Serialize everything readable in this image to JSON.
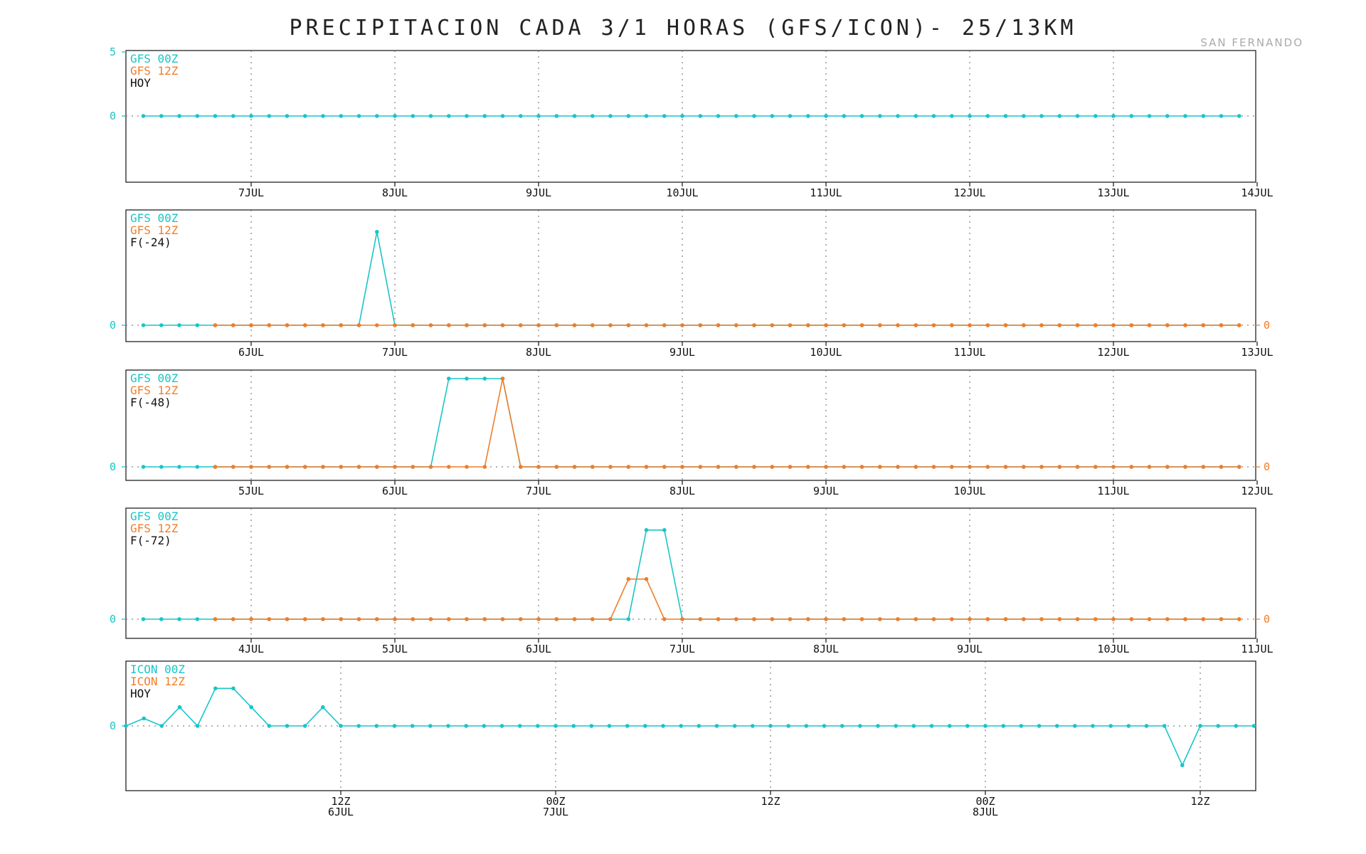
{
  "title": "PRECIPITACION CADA 3/1 HORAS (GFS/ICON)- 25/13KM",
  "station": "SAN FERNANDO",
  "colors": {
    "series_00z": "#19c5c8",
    "series_12z": "#f07d2a",
    "text": "#111111",
    "frame": "#222222",
    "grid": "#666666"
  },
  "chart_data": [
    {
      "type": "line",
      "legend": [
        "GFS 00Z",
        "GFS 12Z",
        "HOY"
      ],
      "x_tick_labels": [
        "7JUL",
        "8JUL",
        "9JUL",
        "10JUL",
        "11JUL",
        "12JUL",
        "13JUL",
        "14JUL"
      ],
      "y_tick_labels": [
        {
          "value": 5,
          "label": "5"
        },
        {
          "value": 0,
          "label": "0"
        }
      ],
      "right_y_tick_labels": [],
      "ylim": [
        -5,
        5
      ],
      "grid": true,
      "series": [
        {
          "name": "GFS 00Z",
          "x_start": -0.75,
          "x_step": 0.125,
          "values": [
            0,
            0,
            0,
            0,
            0,
            0,
            0,
            0,
            0,
            0,
            0,
            0,
            0,
            0,
            0,
            0,
            0,
            0,
            0,
            0,
            0,
            0,
            0,
            0,
            0,
            0,
            0,
            0,
            0,
            0,
            0,
            0,
            0,
            0,
            0,
            0,
            0,
            0,
            0,
            0,
            0,
            0,
            0,
            0,
            0,
            0,
            0,
            0,
            0,
            0,
            0,
            0,
            0,
            0,
            0,
            0,
            0,
            0,
            0,
            0,
            0,
            0,
            0,
            0,
            0
          ]
        }
      ]
    },
    {
      "type": "line",
      "legend": [
        "GFS 00Z",
        "GFS 12Z",
        "F(-24)"
      ],
      "x_tick_labels": [
        "6JUL",
        "7JUL",
        "8JUL",
        "9JUL",
        "10JUL",
        "11JUL",
        "12JUL",
        "13JUL"
      ],
      "y_tick_labels": [
        {
          "value": 0,
          "label": "0"
        }
      ],
      "right_y_tick_labels": [
        {
          "value": 0,
          "label": "0"
        }
      ],
      "ylim": [
        -0.25,
        1.6
      ],
      "grid": true,
      "series": [
        {
          "name": "GFS 00Z",
          "x_start": -0.75,
          "x_step": 0.125,
          "values": [
            0,
            0,
            0,
            0,
            0,
            0,
            0,
            0,
            0,
            0,
            0,
            0,
            0,
            1.4,
            0,
            0,
            0,
            0,
            0,
            0,
            0,
            0,
            0,
            0,
            0,
            0,
            0,
            0,
            0,
            0,
            0,
            0,
            0,
            0,
            0,
            0,
            0,
            0,
            0,
            0,
            0,
            0,
            0,
            0,
            0,
            0,
            0,
            0,
            0,
            0,
            0,
            0,
            0,
            0,
            0,
            0,
            0,
            0,
            0,
            0,
            0,
            0,
            0,
            0,
            0
          ]
        },
        {
          "name": "GFS 12Z",
          "x_start": -0.25,
          "x_step": 0.125,
          "values": [
            0,
            0,
            0,
            0,
            0,
            0,
            0,
            0,
            0,
            0,
            0,
            0,
            0,
            0,
            0,
            0,
            0,
            0,
            0,
            0,
            0,
            0,
            0,
            0,
            0,
            0,
            0,
            0,
            0,
            0,
            0,
            0,
            0,
            0,
            0,
            0,
            0,
            0,
            0,
            0,
            0,
            0,
            0,
            0,
            0,
            0,
            0,
            0,
            0,
            0,
            0,
            0,
            0,
            0,
            0,
            0,
            0,
            0,
            0,
            0,
            0
          ]
        }
      ]
    },
    {
      "type": "line",
      "legend": [
        "GFS 00Z",
        "GFS 12Z",
        "F(-48)"
      ],
      "x_tick_labels": [
        "5JUL",
        "6JUL",
        "7JUL",
        "8JUL",
        "9JUL",
        "10JUL",
        "11JUL",
        "12JUL"
      ],
      "y_tick_labels": [
        {
          "value": 0,
          "label": "0"
        }
      ],
      "right_y_tick_labels": [
        {
          "value": 0,
          "label": "0"
        }
      ],
      "ylim": [
        -0.2,
        1.0
      ],
      "grid": true,
      "series": [
        {
          "name": "GFS 00Z",
          "x_start": -0.75,
          "x_step": 0.125,
          "values": [
            0,
            0,
            0,
            0,
            0,
            0,
            0,
            0,
            0,
            0,
            0,
            0,
            0,
            0,
            0,
            0,
            0,
            1,
            1,
            1,
            1,
            0,
            0,
            0,
            0,
            0,
            0,
            0,
            0,
            0,
            0,
            0,
            0,
            0,
            0,
            0,
            0,
            0,
            0,
            0,
            0,
            0,
            0,
            0,
            0,
            0,
            0,
            0,
            0,
            0,
            0,
            0,
            0,
            0,
            0,
            0,
            0,
            0,
            0,
            0,
            0,
            0,
            0,
            0,
            0
          ]
        },
        {
          "name": "GFS 12Z",
          "x_start": -0.25,
          "x_step": 0.125,
          "values": [
            0,
            0,
            0,
            0,
            0,
            0,
            0,
            0,
            0,
            0,
            0,
            0,
            0,
            0,
            0,
            0,
            1,
            0,
            0,
            0,
            0,
            0,
            0,
            0,
            0,
            0,
            0,
            0,
            0,
            0,
            0,
            0,
            0,
            0,
            0,
            0,
            0,
            0,
            0,
            0,
            0,
            0,
            0,
            0,
            0,
            0,
            0,
            0,
            0,
            0,
            0,
            0,
            0,
            0,
            0,
            0,
            0,
            0,
            0,
            0,
            0
          ]
        }
      ]
    },
    {
      "type": "line",
      "legend": [
        "GFS 00Z",
        "GFS 12Z",
        "F(-72)"
      ],
      "x_tick_labels": [
        "4JUL",
        "5JUL",
        "6JUL",
        "7JUL",
        "8JUL",
        "9JUL",
        "10JUL",
        "11JUL"
      ],
      "y_tick_labels": [
        {
          "value": 0,
          "label": "0"
        }
      ],
      "right_y_tick_labels": [
        {
          "value": 0,
          "label": "0"
        }
      ],
      "ylim": [
        -0.15,
        1.15
      ],
      "grid": true,
      "series": [
        {
          "name": "GFS 00Z",
          "x_start": -0.75,
          "x_step": 0.125,
          "values": [
            0,
            0,
            0,
            0,
            0,
            0,
            0,
            0,
            0,
            0,
            0,
            0,
            0,
            0,
            0,
            0,
            0,
            0,
            0,
            0,
            0,
            0,
            0,
            0,
            0,
            0,
            0,
            0,
            1,
            1,
            0,
            0,
            0,
            0,
            0,
            0,
            0,
            0,
            0,
            0,
            0,
            0,
            0,
            0,
            0,
            0,
            0,
            0,
            0,
            0,
            0,
            0,
            0,
            0,
            0,
            0,
            0,
            0,
            0,
            0,
            0,
            0,
            0,
            0,
            0
          ]
        },
        {
          "name": "GFS 12Z",
          "x_start": -0.25,
          "x_step": 0.125,
          "values": [
            0,
            0,
            0,
            0,
            0,
            0,
            0,
            0,
            0,
            0,
            0,
            0,
            0,
            0,
            0,
            0,
            0,
            0,
            0,
            0,
            0,
            0,
            0,
            0.45,
            0.45,
            0,
            0,
            0,
            0,
            0,
            0,
            0,
            0,
            0,
            0,
            0,
            0,
            0,
            0,
            0,
            0,
            0,
            0,
            0,
            0,
            0,
            0,
            0,
            0,
            0,
            0,
            0,
            0,
            0,
            0,
            0,
            0,
            0,
            0,
            0,
            0
          ]
        }
      ]
    },
    {
      "type": "line",
      "legend": [
        "ICON 00Z",
        "ICON 12Z",
        "HOY"
      ],
      "x_tick_labels": [
        {
          "pos": 0.5,
          "lines": [
            "12Z",
            "6JUL"
          ]
        },
        {
          "pos": 1.0,
          "lines": [
            "00Z",
            "7JUL"
          ]
        },
        {
          "pos": 1.5,
          "lines": [
            "12Z"
          ]
        },
        {
          "pos": 2.0,
          "lines": [
            "00Z",
            "8JUL"
          ]
        },
        {
          "pos": 2.5,
          "lines": [
            "12Z"
          ]
        }
      ],
      "y_tick_labels": [
        {
          "value": 0,
          "label": "0"
        }
      ],
      "right_y_tick_labels": [],
      "ylim": [
        -0.3,
        0.3
      ],
      "grid": true,
      "series": [
        {
          "name": "ICON 00Z",
          "x_start": 0,
          "x_step": 0.041667,
          "values": [
            0,
            0.04,
            0,
            0.1,
            0,
            0.2,
            0.2,
            0.1,
            0,
            0,
            0,
            0.1,
            0,
            0,
            0,
            0,
            0,
            0,
            0,
            0,
            0,
            0,
            0,
            0,
            0,
            0,
            0,
            0,
            0,
            0,
            0,
            0,
            0,
            0,
            0,
            0,
            0,
            0,
            0,
            0,
            0,
            0,
            0,
            0,
            0,
            0,
            0,
            0,
            0,
            0,
            0,
            0,
            0,
            0,
            0,
            0,
            0,
            0,
            0,
            -0.2,
            0,
            0,
            0,
            0
          ]
        }
      ]
    }
  ]
}
